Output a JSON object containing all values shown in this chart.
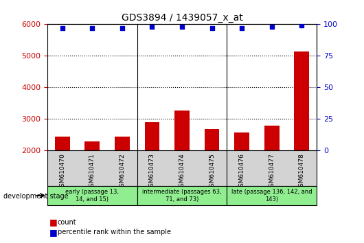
{
  "title": "GDS3894 / 1439057_x_at",
  "categories": [
    "GSM610470",
    "GSM610471",
    "GSM610472",
    "GSM610473",
    "GSM610474",
    "GSM610475",
    "GSM610476",
    "GSM610477",
    "GSM610478"
  ],
  "bar_values": [
    2450,
    2300,
    2450,
    2900,
    3280,
    2680,
    2580,
    2800,
    5150
  ],
  "percentile_values": [
    97,
    97,
    97,
    98,
    98,
    97,
    97,
    98,
    99
  ],
  "bar_color": "#cc0000",
  "dot_color": "#0000cc",
  "ylim_left": [
    2000,
    6000
  ],
  "ylim_right": [
    0,
    100
  ],
  "yticks_left": [
    2000,
    3000,
    4000,
    5000,
    6000
  ],
  "yticks_right": [
    0,
    25,
    50,
    75,
    100
  ],
  "groups": [
    {
      "label": "early (passage 13,\n14, and 15)",
      "start": 0,
      "end": 3
    },
    {
      "label": "intermediate (passages 63,\n71, and 73)",
      "start": 3,
      "end": 6
    },
    {
      "label": "late (passage 136, 142, and\n143)",
      "start": 6,
      "end": 9
    }
  ],
  "group_color": "#90ee90",
  "cat_bg_color": "#d3d3d3",
  "legend_count_color": "#cc0000",
  "legend_dot_color": "#0000cc",
  "dev_stage_label": "development stage",
  "bar_width": 0.5
}
